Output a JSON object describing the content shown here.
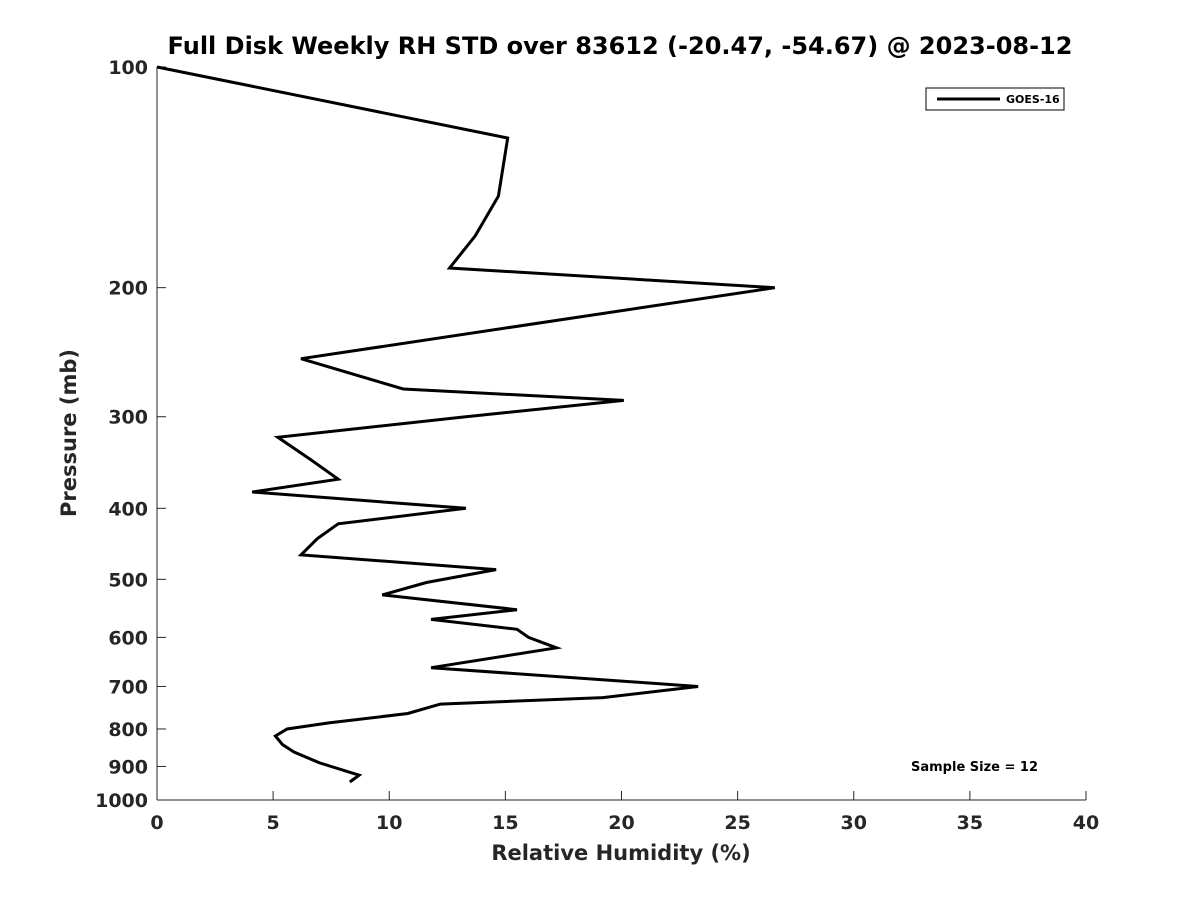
{
  "chart_data": {
    "type": "line",
    "title": "Full Disk Weekly RH STD over 83612 (-20.47, -54.67) @ 2023-08-12",
    "xlabel": "Relative Humidity (%)",
    "ylabel": "Pressure (mb)",
    "xlim": [
      0,
      40
    ],
    "ylim": [
      100,
      1000
    ],
    "yscale": "log",
    "y_reversed": true,
    "grid": false,
    "x_ticks": [
      0,
      5,
      10,
      15,
      20,
      25,
      30,
      35,
      40
    ],
    "x_tick_labels": [
      "0",
      "5",
      "10",
      "15",
      "20",
      "25",
      "30",
      "35",
      "40"
    ],
    "y_ticks": [
      100,
      200,
      300,
      400,
      500,
      600,
      700,
      800,
      900,
      1000
    ],
    "y_tick_labels": [
      "100",
      "200",
      "300",
      "400",
      "500",
      "600",
      "700",
      "800",
      "900",
      "1000"
    ],
    "legend": {
      "position": "top-right",
      "entries": [
        "GOES-16"
      ]
    },
    "annotation": "Sample Size = 12",
    "series": [
      {
        "name": "GOES-16",
        "color": "#000000",
        "points": [
          [
            0.0,
            100
          ],
          [
            15.1,
            125
          ],
          [
            14.7,
            150
          ],
          [
            13.7,
            170
          ],
          [
            12.6,
            188
          ],
          [
            26.6,
            200
          ],
          [
            6.2,
            250
          ],
          [
            10.6,
            275
          ],
          [
            20.1,
            285
          ],
          [
            13.3,
            300
          ],
          [
            5.2,
            320
          ],
          [
            6.6,
            343
          ],
          [
            7.8,
            365
          ],
          [
            4.1,
            380
          ],
          [
            13.3,
            400
          ],
          [
            7.8,
            420
          ],
          [
            6.9,
            440
          ],
          [
            6.2,
            463
          ],
          [
            14.6,
            485
          ],
          [
            11.6,
            505
          ],
          [
            9.7,
            525
          ],
          [
            15.5,
            550
          ],
          [
            11.8,
            567
          ],
          [
            15.5,
            585
          ],
          [
            16.0,
            600
          ],
          [
            17.2,
            620
          ],
          [
            11.8,
            660
          ],
          [
            23.3,
            700
          ],
          [
            19.2,
            725
          ],
          [
            12.2,
            740
          ],
          [
            10.8,
            762
          ],
          [
            7.4,
            785
          ],
          [
            5.6,
            800
          ],
          [
            5.1,
            818
          ],
          [
            5.4,
            840
          ],
          [
            5.9,
            860
          ],
          [
            7.0,
            890
          ],
          [
            8.7,
            925
          ],
          [
            8.3,
            945
          ]
        ]
      }
    ]
  }
}
